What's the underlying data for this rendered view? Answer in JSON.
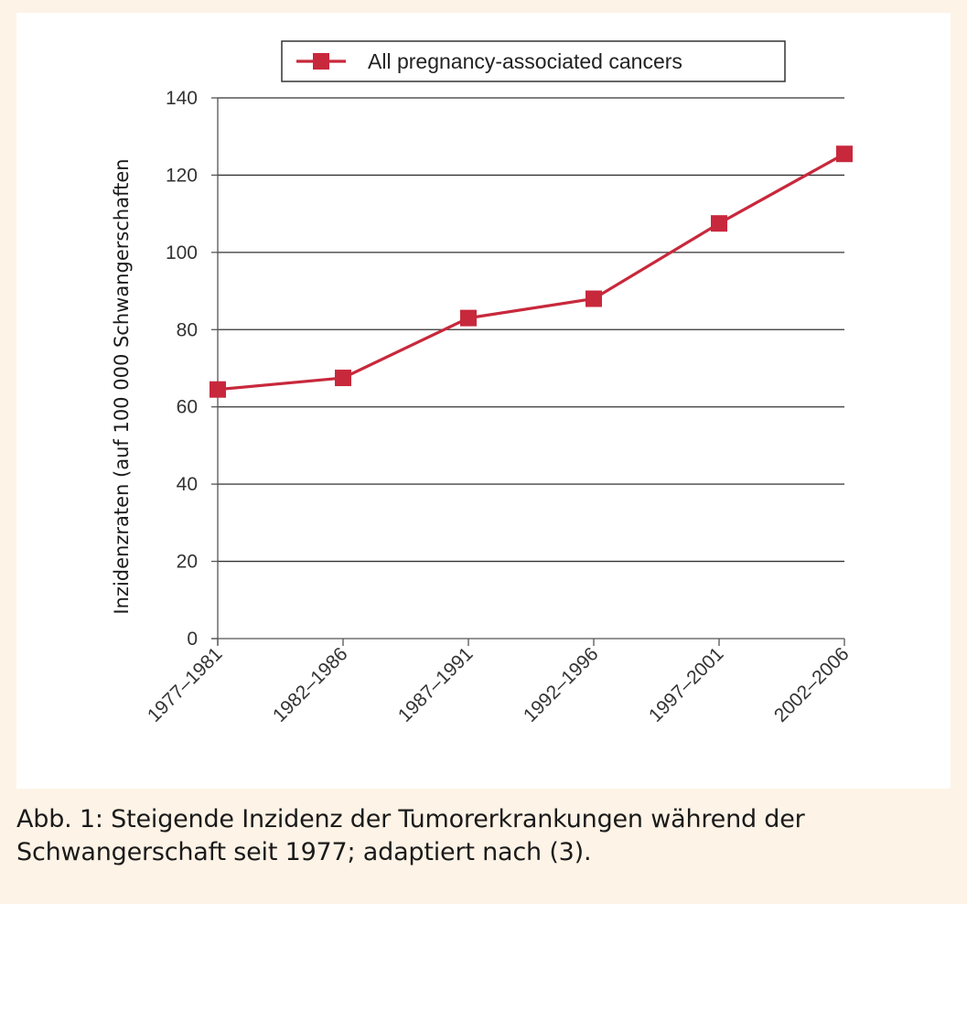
{
  "chart_data": {
    "type": "line",
    "categories": [
      "1977–1981",
      "1982–1986",
      "1987–1991",
      "1992–1996",
      "1997–2001",
      "2002–2006"
    ],
    "series": [
      {
        "name": "All pregnancy-associated cancers",
        "values": [
          64.5,
          67.5,
          83,
          88,
          107.5,
          125.5
        ],
        "color": "#c8283c"
      }
    ],
    "ylabel": "Inzidenzraten (auf 100 000 Schwangerschaften",
    "xlabel": "",
    "ylim": [
      0,
      140
    ],
    "yticks": [
      0,
      20,
      40,
      60,
      80,
      100,
      120,
      140
    ],
    "grid": "horizontal",
    "legend": "top-center",
    "marker": "square"
  },
  "caption": {
    "line1": "Abb. 1: Steigende Inzidenz der Tumorerkrankungen während der",
    "line2": "Schwangerschaft seit 1977; adaptiert nach (3)."
  },
  "colors": {
    "panel_background": "#fdf3e6",
    "series": "#c8283c",
    "axis": "#555555",
    "grid": "#333333"
  }
}
